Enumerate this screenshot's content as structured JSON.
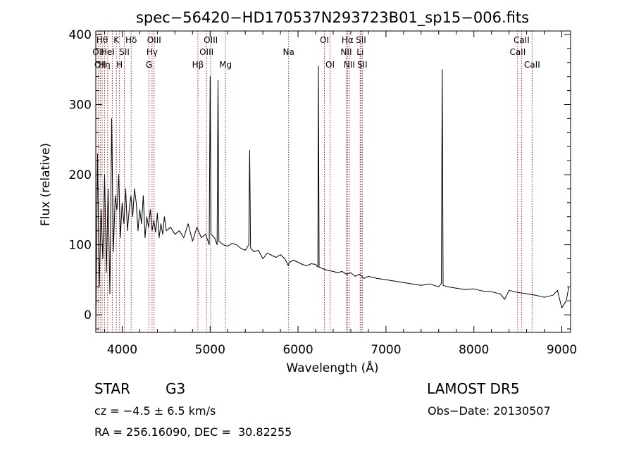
{
  "chart_data": {
    "type": "line",
    "title": "spec−56420−HD170537N293723B01_sp15−006.fits",
    "xlabel": "Wavelength (Å)",
    "ylabel": "Flux (relative)",
    "xlim": [
      3700,
      9100
    ],
    "ylim": [
      -25,
      405
    ],
    "xticks": [
      {
        "v": 4000,
        "label": "4000"
      },
      {
        "v": 5000,
        "label": "5000"
      },
      {
        "v": 6000,
        "label": "6000"
      },
      {
        "v": 7000,
        "label": "7000"
      },
      {
        "v": 8000,
        "label": "8000"
      },
      {
        "v": 9000,
        "label": "9000"
      }
    ],
    "yticks": [
      {
        "v": 0,
        "label": "0"
      },
      {
        "v": 100,
        "label": "100"
      },
      {
        "v": 200,
        "label": "200"
      },
      {
        "v": 300,
        "label": "300"
      },
      {
        "v": 400,
        "label": "400"
      }
    ],
    "grid": false,
    "series": [
      {
        "color": "#000000",
        "x": [
          3700,
          3720,
          3740,
          3760,
          3780,
          3800,
          3820,
          3840,
          3860,
          3880,
          3900,
          3920,
          3940,
          3960,
          3980,
          4000,
          4020,
          4040,
          4060,
          4080,
          4100,
          4120,
          4140,
          4160,
          4180,
          4200,
          4220,
          4240,
          4260,
          4280,
          4300,
          4320,
          4340,
          4360,
          4380,
          4400,
          4420,
          4440,
          4460,
          4480,
          4500,
          4550,
          4600,
          4650,
          4700,
          4750,
          4800,
          4850,
          4900,
          4950,
          4990,
          5000,
          5010,
          5050,
          5080,
          5090,
          5100,
          5150,
          5200,
          5250,
          5300,
          5350,
          5400,
          5440,
          5450,
          5460,
          5500,
          5550,
          5600,
          5650,
          5700,
          5750,
          5800,
          5850,
          5890,
          5900,
          5950,
          6000,
          6050,
          6100,
          6150,
          6200,
          6225,
          6232,
          6240,
          6280,
          6300,
          6350,
          6400,
          6450,
          6500,
          6550,
          6600,
          6650,
          6700,
          6750,
          6800,
          6900,
          7000,
          7100,
          7200,
          7300,
          7400,
          7500,
          7600,
          7630,
          7640,
          7650,
          7700,
          7800,
          7900,
          8000,
          8100,
          8200,
          8300,
          8350,
          8400,
          8500,
          8600,
          8700,
          8800,
          8900,
          8950,
          9000,
          9050,
          9080
        ],
        "y": [
          -25,
          230,
          40,
          150,
          80,
          200,
          60,
          180,
          30,
          280,
          90,
          170,
          150,
          200,
          110,
          160,
          130,
          180,
          120,
          150,
          170,
          140,
          180,
          160,
          120,
          150,
          130,
          170,
          110,
          140,
          125,
          150,
          120,
          135,
          118,
          145,
          110,
          130,
          115,
          140,
          120,
          125,
          115,
          120,
          110,
          130,
          105,
          125,
          110,
          115,
          100,
          340,
          115,
          110,
          100,
          335,
          105,
          100,
          98,
          102,
          100,
          95,
          92,
          100,
          235,
          95,
          90,
          92,
          80,
          88,
          85,
          82,
          86,
          80,
          70,
          75,
          78,
          75,
          72,
          70,
          73,
          72,
          68,
          355,
          68,
          66,
          65,
          63,
          62,
          60,
          62,
          58,
          60,
          55,
          58,
          52,
          55,
          52,
          50,
          48,
          46,
          44,
          42,
          44,
          40,
          45,
          350,
          42,
          40,
          38,
          36,
          37,
          34,
          33,
          30,
          22,
          35,
          32,
          30,
          28,
          25,
          28,
          35,
          10,
          20,
          40
        ]
      }
    ],
    "lines": [
      {
        "x": 3727,
        "label": "OII",
        "row": 2
      },
      {
        "x": 3750,
        "label": "OII",
        "row": 3
      },
      {
        "x": 3772,
        "label": "Hθ",
        "row": 1
      },
      {
        "x": 3800,
        "label": "Hη",
        "row": 3
      },
      {
        "x": 3835,
        "label": "HeI",
        "row": 2
      },
      {
        "x": 3889,
        "label": "",
        "row": 0
      },
      {
        "x": 3934,
        "label": "K",
        "row": 1
      },
      {
        "x": 3970,
        "label": "H",
        "row": 3
      },
      {
        "x": 4025,
        "label": "SII",
        "row": 2
      },
      {
        "x": 4102,
        "label": "Hδ",
        "row": 1
      },
      {
        "x": 4304,
        "label": "G",
        "row": 3
      },
      {
        "x": 4340,
        "label": "Hγ",
        "row": 2
      },
      {
        "x": 4363,
        "label": "OIII",
        "row": 1
      },
      {
        "x": 4861,
        "label": "Hβ",
        "row": 3
      },
      {
        "x": 4959,
        "label": "OIII",
        "row": 2
      },
      {
        "x": 5007,
        "label": "OIII",
        "row": 1
      },
      {
        "x": 5175,
        "label": "Mg",
        "row": 3
      },
      {
        "x": 5893,
        "label": "Na",
        "row": 2
      },
      {
        "x": 6300,
        "label": "OI",
        "row": 1
      },
      {
        "x": 6364,
        "label": "OI",
        "row": 3
      },
      {
        "x": 6548,
        "label": "NII",
        "row": 2
      },
      {
        "x": 6563,
        "label": "Hα",
        "row": 1
      },
      {
        "x": 6583,
        "label": "NII",
        "row": 3
      },
      {
        "x": 6707,
        "label": "Li",
        "row": 2
      },
      {
        "x": 6716,
        "label": "SII",
        "row": 1
      },
      {
        "x": 6731,
        "label": "SII",
        "row": 3
      },
      {
        "x": 8498,
        "label": "CaII",
        "row": 2
      },
      {
        "x": 8542,
        "label": "CaII",
        "row": 1
      },
      {
        "x": 8662,
        "label": "CaII",
        "row": 3
      }
    ]
  },
  "info": {
    "object_class": "STAR",
    "subclass": "G3",
    "survey": "LAMOST DR5",
    "cz": "cz = −4.5 ± 6.5 km/s",
    "obs_date": "Obs−Date: 20130507",
    "coords": "RA = 256.16090, DEC =  30.82255"
  }
}
